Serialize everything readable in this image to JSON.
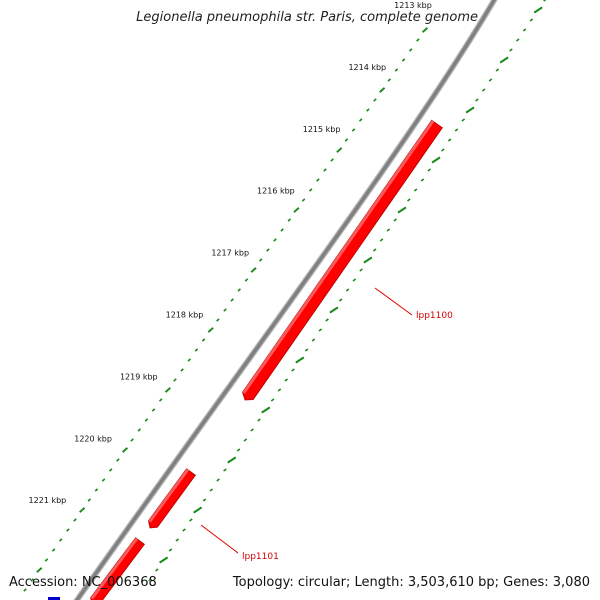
{
  "map": {
    "title": "Legionella pneumophila str. Paris, complete genome",
    "accession": "Accession: NC_006368",
    "summary": "Topology: circular; Length: 3,503,610 bp; Genes: 3,080",
    "ticks": [
      {
        "label": "1213 kbp"
      },
      {
        "label": "1214 kbp"
      },
      {
        "label": "1215 kbp"
      },
      {
        "label": "1216 kbp"
      },
      {
        "label": "1217 kbp"
      },
      {
        "label": "1218 kbp"
      },
      {
        "label": "1219 kbp"
      },
      {
        "label": "1220 kbp"
      },
      {
        "label": "1221 kbp"
      }
    ],
    "genes": [
      {
        "name": "lpp1100",
        "strand": "+",
        "color": "#ff0000"
      },
      {
        "name": "lpp1101",
        "strand": "+",
        "color": "#ff0000"
      }
    ],
    "colors": {
      "backbone": "#808080",
      "gc_ticks": "#1a8a1a",
      "forward_cds": "#ff0000",
      "other_feature": "#0000cc"
    }
  }
}
